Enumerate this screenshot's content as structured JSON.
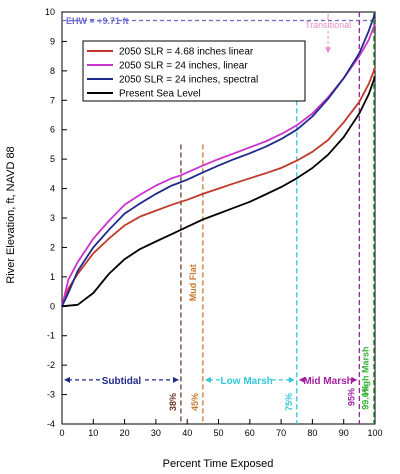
{
  "chart_data": {
    "type": "line",
    "xlabel": "Percent Time Exposed",
    "ylabel": "River Elevation, ft,  NAVD 88",
    "xlim": [
      0,
      100
    ],
    "ylim": [
      -4,
      10
    ],
    "x_ticks": [
      "0",
      "10",
      "20",
      "30",
      "40",
      "50",
      "60",
      "70",
      "80",
      "90",
      "100"
    ],
    "y_ticks": [
      "-4",
      "-3",
      "-2",
      "-1",
      "0",
      "1",
      "2",
      "3",
      "4",
      "5",
      "6",
      "7",
      "8",
      "9",
      "10"
    ],
    "grid": false,
    "legend_position": "top-left",
    "x": [
      0,
      2,
      5,
      10,
      15,
      20,
      25,
      30,
      35,
      38,
      40,
      45,
      50,
      55,
      60,
      65,
      70,
      75,
      80,
      85,
      90,
      95,
      98,
      100
    ],
    "series": [
      {
        "name": "2050 SLR = 4.68 inches linear",
        "color": "#c0392b",
        "values": [
          0,
          0.6,
          1.1,
          1.8,
          2.3,
          2.75,
          3.05,
          3.25,
          3.45,
          3.55,
          3.62,
          3.82,
          4.0,
          4.18,
          4.35,
          4.52,
          4.7,
          4.95,
          5.25,
          5.65,
          6.25,
          6.95,
          7.55,
          8.1
        ]
      },
      {
        "name": "2050 SLR = 24 inches, linear",
        "color": "#cc33cc",
        "values": [
          0,
          0.9,
          1.5,
          2.3,
          2.9,
          3.45,
          3.8,
          4.1,
          4.35,
          4.45,
          4.55,
          4.78,
          5.0,
          5.2,
          5.4,
          5.6,
          5.85,
          6.15,
          6.55,
          7.1,
          7.75,
          8.5,
          9.05,
          9.6
        ]
      },
      {
        "name": "2050 SLR = 24 inches, spectral",
        "color": "#1f2a8a",
        "values": [
          0,
          0.45,
          1.2,
          2.0,
          2.6,
          3.15,
          3.5,
          3.82,
          4.1,
          4.22,
          4.3,
          4.55,
          4.78,
          5.0,
          5.2,
          5.42,
          5.68,
          6.0,
          6.45,
          7.05,
          7.75,
          8.6,
          9.35,
          9.95
        ]
      },
      {
        "name": "Present Sea Level",
        "color": "#000000",
        "values": [
          0,
          0.02,
          0.05,
          0.45,
          1.1,
          1.6,
          1.95,
          2.2,
          2.45,
          2.6,
          2.7,
          2.95,
          3.15,
          3.35,
          3.55,
          3.8,
          4.05,
          4.35,
          4.7,
          5.15,
          5.75,
          6.55,
          7.2,
          7.8
        ]
      }
    ],
    "ehw": {
      "label": "EHW = +9.71 ft",
      "value": 9.71,
      "color": "#6b6bcc"
    },
    "zones": {
      "transitional_label": "Transitional",
      "transitional_color": "#e88ec2",
      "subtidal_label": "Subtidal",
      "subtidal_color": "#1f2a8a",
      "mud_flat_label": "Mud Flat",
      "mud_flat_color": "#c47a2c",
      "low_marsh_label": "Low Marsh",
      "low_marsh_color": "#30c8d8",
      "mid_marsh_label": "Mid Marsh",
      "mid_marsh_color": "#a020a0",
      "high_marsh_label": "High Marsh",
      "high_marsh_color": "#38b038"
    },
    "boundaries": [
      {
        "label": "38%",
        "value": 38,
        "color": "#6b3a2a"
      },
      {
        "label": "45%",
        "value": 45,
        "color": "#c47a2c"
      },
      {
        "label": "75%",
        "value": 75,
        "color": "#30c8d8"
      },
      {
        "label": "95%",
        "value": 95,
        "color": "#a020a0"
      },
      {
        "label": "99.6%",
        "value": 99.6,
        "color": "#38b038"
      }
    ]
  }
}
